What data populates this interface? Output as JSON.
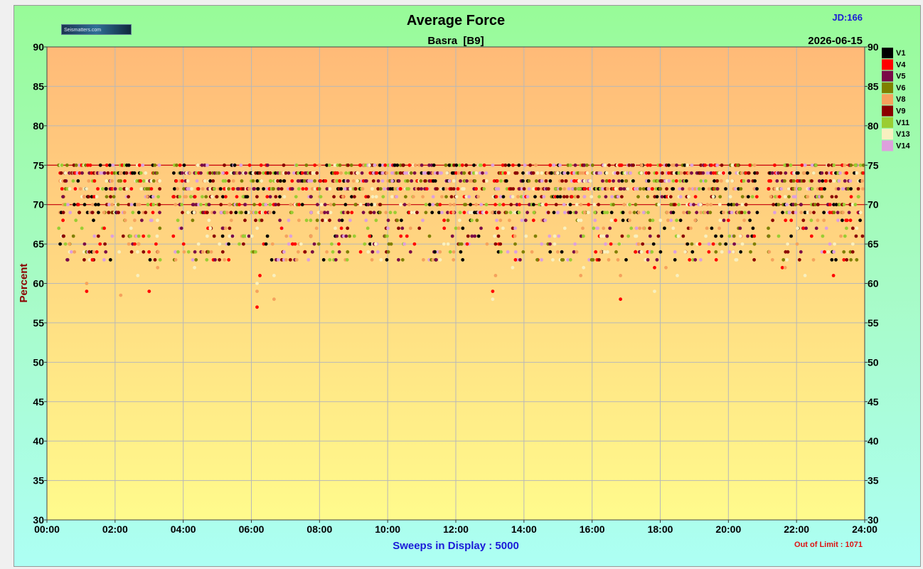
{
  "header": {
    "title": "Average Force",
    "subtitle": "Basra  [B9]",
    "jd": "JD:166",
    "date": "2026-06-15",
    "logo_text": "Seismatters.com"
  },
  "footer": {
    "sweeps_label": "Sweeps in Display : 5000",
    "out_of_limit": "Out of Limit : 1071"
  },
  "colors": {
    "plot_top": "#ffba78",
    "plot_bottom": "#fffb8c",
    "limit_line": "#cc0000",
    "grid": "#b8b8b8",
    "title": "#000000",
    "jd": "#1a1ad8",
    "ylabel": "#8b0000",
    "sweeps": "#1a1ad8",
    "out_of_limit": "#dd1111"
  },
  "chart_data": {
    "type": "scatter",
    "ylabel": "Percent",
    "xlabel": "",
    "ylim": [
      30,
      90
    ],
    "xlim": [
      "00:00",
      "24:00"
    ],
    "x_ticks": [
      "00:00",
      "02:00",
      "04:00",
      "06:00",
      "08:00",
      "10:00",
      "12:00",
      "14:00",
      "16:00",
      "18:00",
      "20:00",
      "22:00",
      "24:00"
    ],
    "y_ticks": [
      30,
      35,
      40,
      45,
      50,
      55,
      60,
      65,
      70,
      75,
      80,
      85,
      90
    ],
    "limit_lines": [
      70,
      75
    ],
    "grid": true,
    "legend_position": "right",
    "series": [
      {
        "name": "V1",
        "color": "#000000"
      },
      {
        "name": "V4",
        "color": "#ff0000"
      },
      {
        "name": "V5",
        "color": "#7a0a48"
      },
      {
        "name": "V6",
        "color": "#7f8000"
      },
      {
        "name": "V8",
        "color": "#f5a25d"
      },
      {
        "name": "V9",
        "color": "#8b0000"
      },
      {
        "name": "V11",
        "color": "#9acd32"
      },
      {
        "name": "V13",
        "color": "#f8f0c0"
      },
      {
        "name": "V14",
        "color": "#dda0dd"
      }
    ],
    "outliers": [
      {
        "x": "01:10",
        "y": 59
      },
      {
        "x": "01:10",
        "y": 60
      },
      {
        "x": "01:15",
        "y": 63
      },
      {
        "x": "01:20",
        "y": 63
      },
      {
        "x": "02:10",
        "y": 58.5
      },
      {
        "x": "02:40",
        "y": 61
      },
      {
        "x": "03:00",
        "y": 59
      },
      {
        "x": "03:15",
        "y": 62
      },
      {
        "x": "04:20",
        "y": 62
      },
      {
        "x": "06:10",
        "y": 57
      },
      {
        "x": "06:10",
        "y": 59
      },
      {
        "x": "06:10",
        "y": 60
      },
      {
        "x": "06:15",
        "y": 61
      },
      {
        "x": "06:40",
        "y": 58
      },
      {
        "x": "06:40",
        "y": 61
      },
      {
        "x": "12:20",
        "y": 65
      },
      {
        "x": "12:55",
        "y": 65
      },
      {
        "x": "13:05",
        "y": 58
      },
      {
        "x": "13:05",
        "y": 59
      },
      {
        "x": "13:10",
        "y": 61
      },
      {
        "x": "13:40",
        "y": 62
      },
      {
        "x": "13:45",
        "y": 63
      },
      {
        "x": "15:40",
        "y": 61
      },
      {
        "x": "15:45",
        "y": 62
      },
      {
        "x": "16:50",
        "y": 58
      },
      {
        "x": "16:50",
        "y": 61
      },
      {
        "x": "17:50",
        "y": 59
      },
      {
        "x": "17:50",
        "y": 62
      },
      {
        "x": "18:10",
        "y": 62
      },
      {
        "x": "18:30",
        "y": 61
      },
      {
        "x": "21:35",
        "y": 62
      },
      {
        "x": "21:40",
        "y": 62
      },
      {
        "x": "22:15",
        "y": 61
      },
      {
        "x": "23:05",
        "y": 61
      }
    ]
  }
}
